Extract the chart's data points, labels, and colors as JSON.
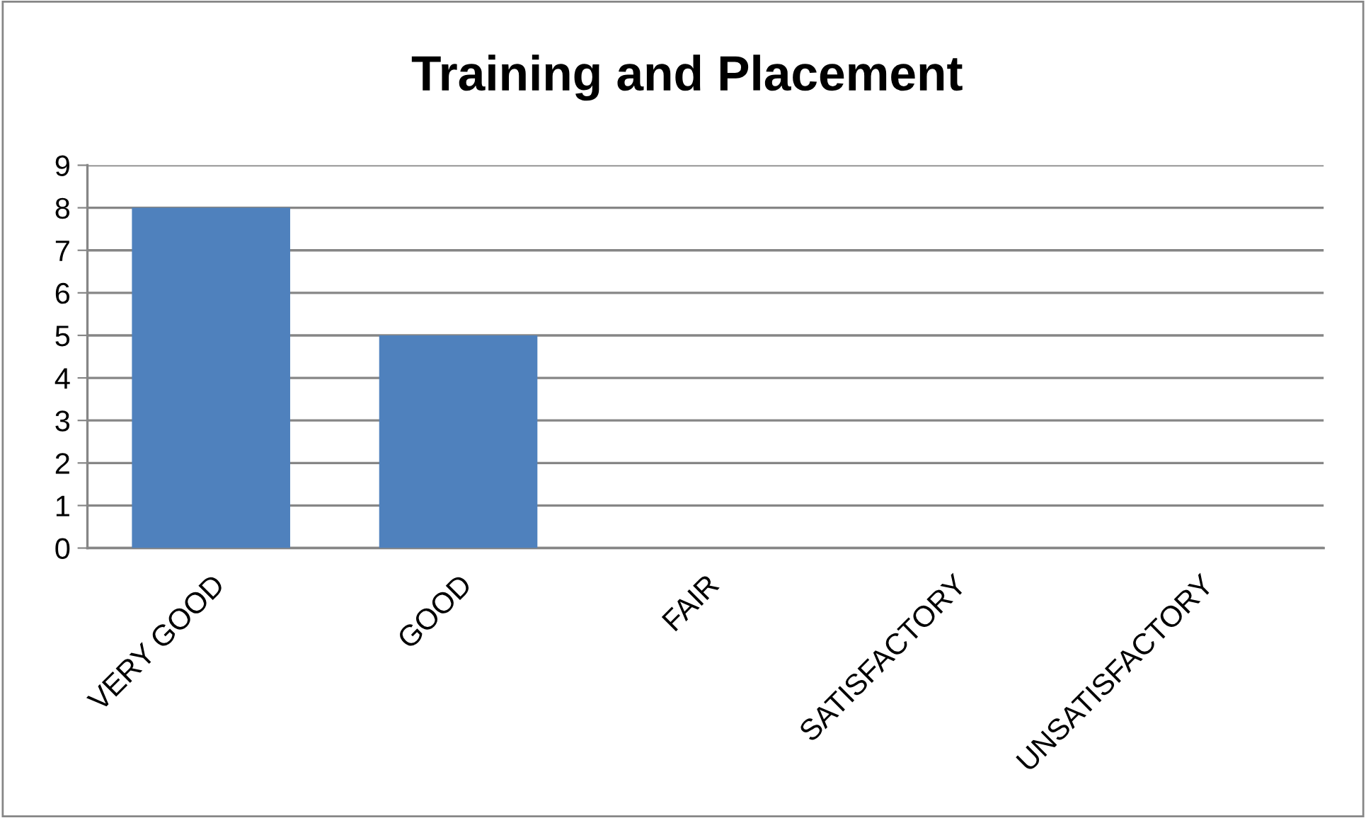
{
  "chart_data": {
    "type": "bar",
    "title": "Training and Placement",
    "categories": [
      "VERY GOOD",
      "GOOD",
      "FAIR",
      "SATISFACTORY",
      "UNSATISFACTORY"
    ],
    "values": [
      8,
      5,
      0,
      0,
      0
    ],
    "color": "#4f81bd",
    "ylim": [
      0,
      9
    ],
    "yticks": [
      0,
      1,
      2,
      3,
      4,
      5,
      6,
      7,
      8,
      9
    ],
    "grid": "y"
  }
}
